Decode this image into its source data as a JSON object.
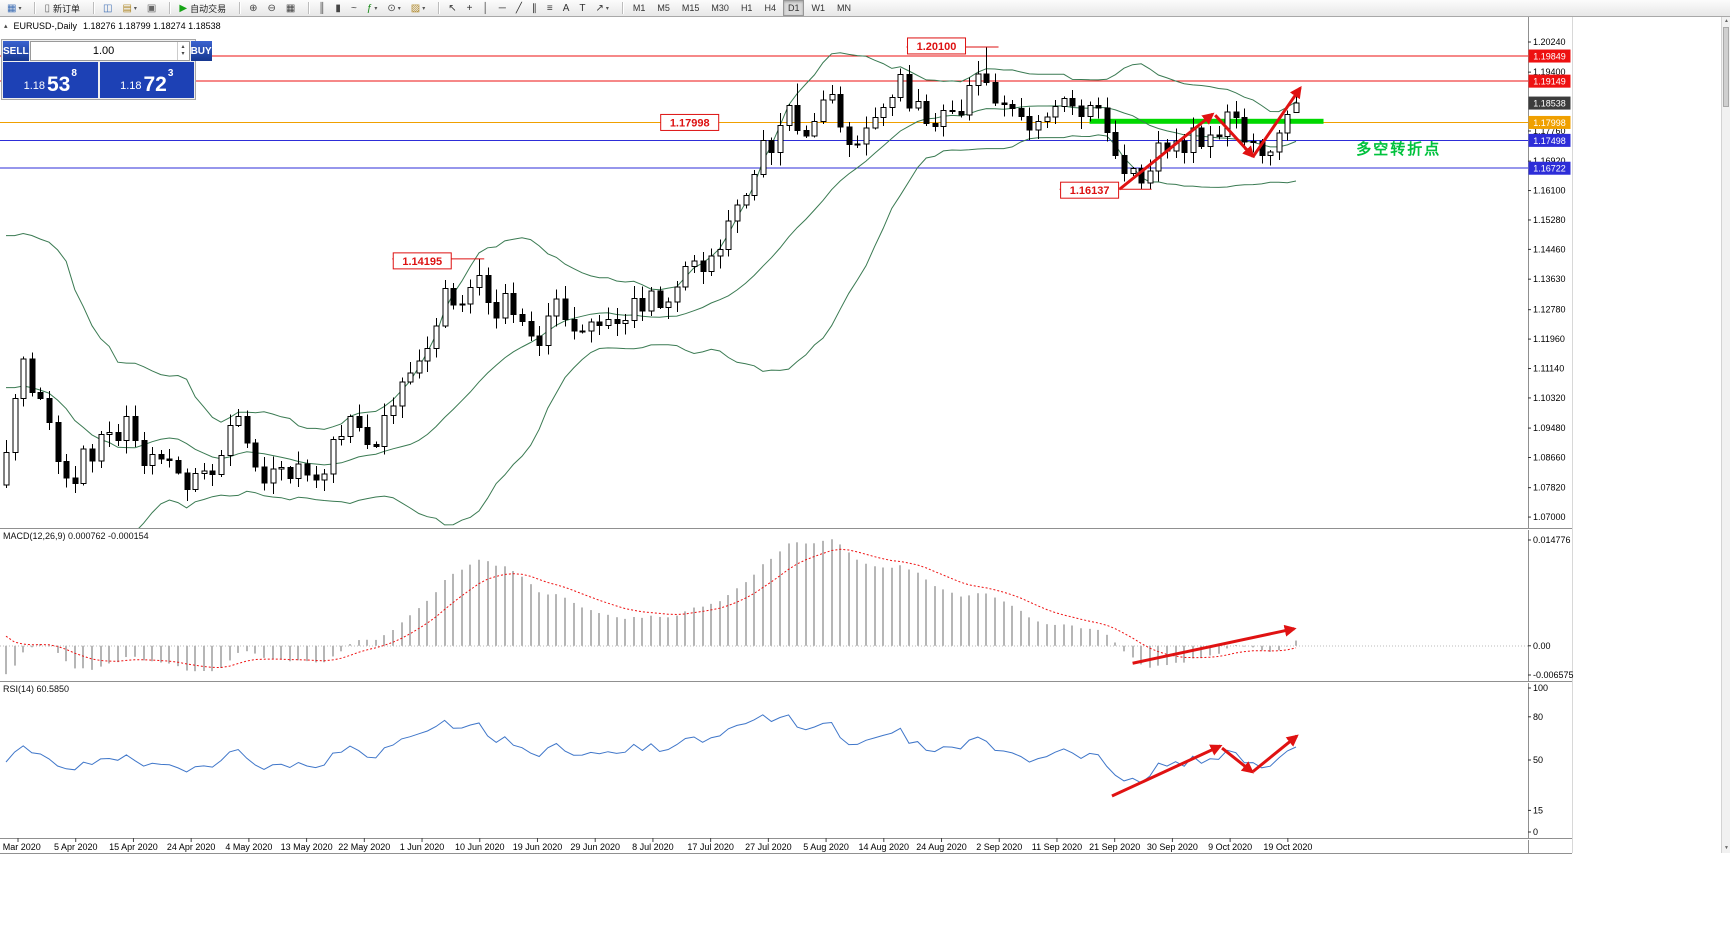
{
  "toolbar": {
    "groups": [
      {
        "name": "chart-new",
        "items": [
          {
            "name": "new-chart-button",
            "icon": "new-chart-icon",
            "glyph": "▦",
            "color": "#3f6fb5",
            "caret": true
          }
        ]
      },
      {
        "name": "order",
        "items": [
          {
            "name": "new-order-button",
            "icon": "new-order-icon",
            "glyph": "▯",
            "color": "#666",
            "label": "新订单"
          }
        ]
      },
      {
        "name": "windows",
        "items": [
          {
            "name": "charts-button",
            "icon": "charts-icon",
            "glyph": "◫",
            "color": "#3f6fb5"
          },
          {
            "name": "profiles-button",
            "icon": "profiles-icon",
            "glyph": "▤",
            "color": "#b08828",
            "caret": true
          },
          {
            "name": "terminal-button",
            "icon": "terminal-icon",
            "glyph": "▣",
            "color": "#666"
          }
        ]
      },
      {
        "name": "autotrade",
        "items": [
          {
            "name": "autotrading-button",
            "icon": "autotrading-play-icon",
            "glyph": "▶",
            "color": "#17a517",
            "label": "自动交易"
          }
        ]
      },
      {
        "name": "zoom",
        "items": [
          {
            "name": "zoom-in-button",
            "icon": "zoom-in-icon",
            "glyph": "⊕",
            "color": "#444"
          },
          {
            "name": "zoom-out-button",
            "icon": "zoom-out-icon",
            "glyph": "⊖",
            "color": "#444"
          },
          {
            "name": "tile-windows-button",
            "icon": "tile-windows-icon",
            "glyph": "▦",
            "color": "#444"
          }
        ]
      },
      {
        "name": "chart-types",
        "items": [
          {
            "name": "bar-chart-button",
            "icon": "bar-chart-icon",
            "glyph": "║",
            "color": "#444"
          },
          {
            "name": "candlestick-chart-button",
            "icon": "candlestick-chart-icon",
            "glyph": "▮",
            "color": "#444"
          },
          {
            "name": "line-chart-button",
            "icon": "line-chart-icon",
            "glyph": "~",
            "color": "#444"
          },
          {
            "name": "indicators-button",
            "icon": "indicators-icon",
            "glyph": "ƒ",
            "color": "#178a17",
            "caret": true
          },
          {
            "name": "periods-button",
            "icon": "periods-icon",
            "glyph": "⊙",
            "color": "#444",
            "caret": true
          },
          {
            "name": "templates-button",
            "icon": "templates-icon",
            "glyph": "▨",
            "color": "#b08828",
            "caret": true
          }
        ]
      },
      {
        "name": "draw-tools",
        "items": [
          {
            "name": "cursor-button",
            "icon": "cursor-icon",
            "glyph": "↖",
            "color": "#333"
          },
          {
            "name": "crosshair-button",
            "icon": "crosshair-icon",
            "glyph": "+",
            "color": "#333"
          },
          {
            "name": "vertical-line-button",
            "icon": "vertical-line-icon",
            "glyph": "│",
            "color": "#333"
          },
          {
            "name": "horizontal-line-button",
            "icon": "horizontal-line-icon",
            "glyph": "─",
            "color": "#333"
          },
          {
            "name": "trendline-button",
            "icon": "trendline-icon",
            "glyph": "╱",
            "color": "#333"
          },
          {
            "name": "channel-button",
            "icon": "channel-icon",
            "glyph": "∥",
            "color": "#333"
          },
          {
            "name": "fibonacci-button",
            "icon": "fibonacci-icon",
            "glyph": "≡",
            "color": "#333"
          },
          {
            "name": "text-button",
            "icon": "text-icon",
            "glyph": "A",
            "color": "#333"
          },
          {
            "name": "label-button",
            "icon": "label-icon",
            "glyph": "T",
            "color": "#333"
          },
          {
            "name": "arrows-button",
            "icon": "arrows-icon",
            "glyph": "↗",
            "color": "#333",
            "caret": true
          }
        ]
      },
      {
        "name": "timeframes",
        "items": []
      }
    ],
    "timeframes": [
      "M1",
      "M5",
      "M15",
      "M30",
      "H1",
      "H4",
      "D1",
      "W1",
      "MN"
    ],
    "active_timeframe": "D1"
  },
  "quote_line": {
    "collapse_icon": "▴",
    "symbol": "EURUSD-,Daily",
    "ohlc": "1.18276 1.18799 1.18274 1.18538"
  },
  "trade_panel": {
    "sell_label": "SELL",
    "buy_label": "BUY",
    "volume": "1.00",
    "spin_up": "▴",
    "spin_down": "▾",
    "sell_price": {
      "prefix": "1.18",
      "big": "53",
      "sup": "8"
    },
    "buy_price": {
      "prefix": "1.18",
      "big": "72",
      "sup": "3"
    }
  },
  "indicator_labels": {
    "macd": "MACD(12,26,9) 0.000762 -0.000154",
    "rsi": "RSI(14) 60.5850"
  },
  "scrollbar": {
    "up": "▲",
    "down": "▼"
  },
  "chart_data": {
    "type": "candlestick",
    "symbol": "EURUSD",
    "timeframe": "Daily",
    "ohlc_display": {
      "open": "1.18276",
      "high": "1.18799",
      "low": "1.18274",
      "close": "1.18538"
    },
    "price_axis_labels": [
      "1.20240",
      "1.19400",
      "1.17760",
      "1.16920",
      "1.16100",
      "1.15280",
      "1.14460",
      "1.13630",
      "1.12780",
      "1.11960",
      "1.11140",
      "1.10320",
      "1.09480",
      "1.08660",
      "1.07820",
      "1.07000"
    ],
    "date_labels": [
      "5 Mar 2020",
      "5 Apr 2020",
      "15 Apr 2020",
      "24 Apr 2020",
      "4 May 2020",
      "13 May 2020",
      "22 May 2020",
      "1 Jun 2020",
      "10 Jun 2020",
      "19 Jun 2020",
      "29 Jun 2020",
      "8 Jul 2020",
      "17 Jul 2020",
      "27 Jul 2020",
      "5 Aug 2020",
      "14 Aug 2020",
      "24 Aug 2020",
      "2 Sep 2020",
      "11 Sep 2020",
      "21 Sep 2020",
      "30 Sep 2020",
      "9 Oct 2020",
      "19 Oct 2020"
    ],
    "warmup_closes": [
      1.0792,
      1.0801,
      1.0785,
      1.0846,
      1.0853,
      1.088,
      1.091,
      1.0887,
      1.1027,
      1.1052,
      1.1134,
      1.1173,
      1.1135,
      1.124,
      1.1288,
      1.145,
      1.1281,
      1.127,
      1.1184,
      1.1105,
      1.118,
      1.0999,
      1.0915,
      1.0692,
      1.0696,
      1.0725,
      1.0789
    ],
    "closes": [
      1.088,
      1.103,
      1.114,
      1.1047,
      1.1031,
      1.0963,
      1.0855,
      1.0809,
      1.0793,
      1.089,
      1.0856,
      1.093,
      1.0936,
      1.0913,
      1.098,
      1.0913,
      1.0844,
      1.0875,
      1.0862,
      1.0858,
      1.0823,
      1.0777,
      1.0822,
      1.0829,
      1.0818,
      1.0872,
      1.0955,
      1.098,
      1.0906,
      1.084,
      1.0795,
      1.0834,
      1.0838,
      1.0808,
      1.0848,
      1.0817,
      1.0803,
      1.082,
      1.0916,
      1.0924,
      1.098,
      1.095,
      1.0902,
      1.0897,
      1.0983,
      1.101,
      1.1076,
      1.1101,
      1.1135,
      1.117,
      1.1233,
      1.1337,
      1.1291,
      1.1294,
      1.134,
      1.1373,
      1.1298,
      1.1255,
      1.1323,
      1.1264,
      1.1245,
      1.1205,
      1.1178,
      1.1261,
      1.1308,
      1.1251,
      1.1218,
      1.1219,
      1.1243,
      1.1234,
      1.125,
      1.1239,
      1.1248,
      1.1309,
      1.1274,
      1.133,
      1.1284,
      1.13,
      1.1341,
      1.1398,
      1.1413,
      1.1385,
      1.1428,
      1.1446,
      1.1525,
      1.157,
      1.1596,
      1.1655,
      1.175,
      1.1716,
      1.1791,
      1.1847,
      1.1778,
      1.1762,
      1.1803,
      1.1863,
      1.1878,
      1.1787,
      1.1738,
      1.174,
      1.1785,
      1.1813,
      1.1842,
      1.187,
      1.1933,
      1.184,
      1.1858,
      1.1797,
      1.1788,
      1.1833,
      1.1831,
      1.182,
      1.1903,
      1.1935,
      1.1911,
      1.1854,
      1.185,
      1.1838,
      1.1816,
      1.1779,
      1.1802,
      1.1815,
      1.1844,
      1.1867,
      1.1846,
      1.1816,
      1.1847,
      1.184,
      1.1772,
      1.1707,
      1.1658,
      1.1671,
      1.1631,
      1.1665,
      1.1742,
      1.172,
      1.1748,
      1.1716,
      1.1784,
      1.1733,
      1.1765,
      1.1761,
      1.1829,
      1.1814,
      1.1745,
      1.1746,
      1.1708,
      1.1718,
      1.177,
      1.1822,
      1.18538
    ],
    "overrides": {
      "2": {
        "h": 1.1147
      },
      "55": {
        "h": 1.14195
      },
      "92": {
        "h": 1.1909
      },
      "114": {
        "h": 1.201
      },
      "132": {
        "l": 1.16137
      },
      "150": {
        "o": 1.18276,
        "h": 1.18799,
        "l": 1.18274,
        "c": 1.18538
      }
    },
    "indicators": {
      "bollinger": {
        "period": 20,
        "deviation": 2,
        "color": "#3a7a52"
      },
      "macd": {
        "label": "MACD(12,26,9)",
        "values": [
          0.000762,
          -0.000154
        ],
        "axis_labels": [
          "0.014776",
          "0.00",
          "-0.006575"
        ],
        "hist_color": "#b6b6b6",
        "signal_color": "#ee1111"
      },
      "rsi": {
        "label": "RSI(14)",
        "value": 60.585,
        "color": "#3f76c9",
        "axis_labels": [
          {
            "text": "100",
            "v": 100
          },
          {
            "text": "80",
            "v": 80
          },
          {
            "text": "50",
            "v": 50
          },
          {
            "text": "15",
            "v": 15
          },
          {
            "text": "0",
            "v": 0
          }
        ]
      }
    },
    "hlines": [
      {
        "price": 1.19849,
        "color": "#ee1111",
        "box": "1.19849"
      },
      {
        "price": 1.19149,
        "color": "#ee1111",
        "box": "1.19149"
      },
      {
        "price": 1.17998,
        "color": "#f0a000",
        "box": "1.17998"
      },
      {
        "price": 1.17498,
        "color": "#2d2dd8",
        "box": "1.17498"
      },
      {
        "price": 1.16722,
        "color": "#2d2dd8",
        "box": "1.16722"
      }
    ],
    "current_price": {
      "text": "1.18538",
      "price": 1.18538,
      "box_color": "#3c3c3c"
    },
    "price_labels": [
      {
        "text": "1.20100",
        "bar": 108.2,
        "price": 1.2013,
        "line_price": 1.201
      },
      {
        "text": "1.17998",
        "bar": 79.5,
        "price": 1.17998
      },
      {
        "text": "1.16137",
        "bar": 126.0,
        "price": 1.1611,
        "line_price": 1.16137
      },
      {
        "text": "1.14195",
        "bar": 48.4,
        "price": 1.1414,
        "line_price": 1.14195
      }
    ],
    "green_zone": {
      "price": 1.1803,
      "bar_from": 126.0,
      "bar_to": 153.2,
      "color": "#00d800"
    },
    "note": {
      "text": "多空转折点",
      "bar": 157.0,
      "price": 1.1712,
      "color": "#00c23d"
    },
    "arrow_color": "#e01212",
    "arrows": {
      "main": [
        [
          129.5,
          1.1614,
          140.3,
          1.1823
        ],
        [
          140.6,
          1.182,
          145.0,
          1.1705
        ],
        [
          145.0,
          1.1704,
          150.5,
          1.1896
        ]
      ],
      "macd": [
        [
          131.0,
          0.903,
          149.8,
          0.66
        ]
      ],
      "rsi": [
        [
          128.6,
          25.0,
          141.2,
          59.7
        ],
        [
          141.4,
          58.3,
          144.9,
          41.7
        ],
        [
          145.0,
          42.0,
          150.1,
          66.7
        ]
      ]
    }
  }
}
